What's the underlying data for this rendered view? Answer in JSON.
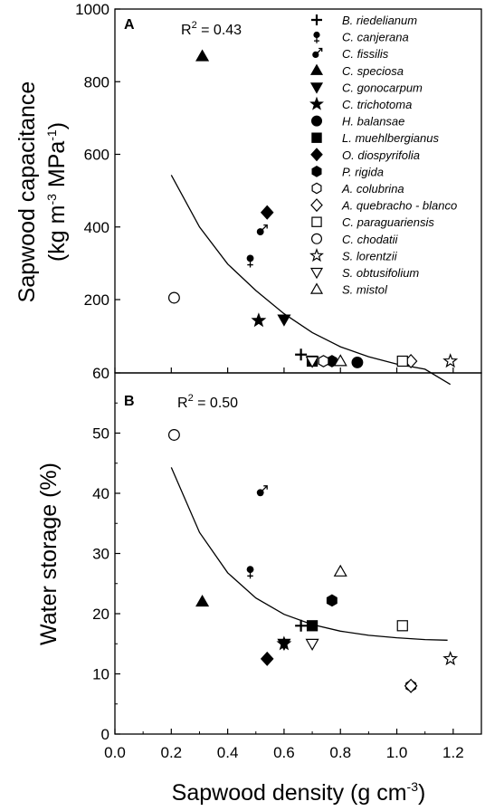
{
  "legend": [
    {
      "name": "B. riedelianum",
      "marker": "plus"
    },
    {
      "name": "C. canjerana",
      "marker": "female"
    },
    {
      "name": "C. fissilis",
      "marker": "male"
    },
    {
      "name": "C. speciosa",
      "marker": "triangle-up-filled"
    },
    {
      "name": "C. gonocarpum",
      "marker": "triangle-down-filled"
    },
    {
      "name": "C. trichotoma",
      "marker": "star-filled"
    },
    {
      "name": "H. balansae",
      "marker": "circle-filled"
    },
    {
      "name": "L. muehlbergianus",
      "marker": "square-filled"
    },
    {
      "name": "O. diospyrifolia",
      "marker": "diamond-filled"
    },
    {
      "name": "P. rigida",
      "marker": "hexagon-filled"
    },
    {
      "name": "A. colubrina",
      "marker": "hexagon-open"
    },
    {
      "name": "A. quebracho - blanco",
      "marker": "diamond-open"
    },
    {
      "name": "C. paraguariensis",
      "marker": "square-open"
    },
    {
      "name": "C. chodatii",
      "marker": "circle-open"
    },
    {
      "name": "S. lorentzii",
      "marker": "star-open"
    },
    {
      "name": "S. obtusifolium",
      "marker": "triangle-down-open"
    },
    {
      "name": "S. mistol",
      "marker": "triangle-up-open"
    }
  ],
  "chart_data": [
    {
      "type": "scatter",
      "panel_label": "A",
      "annotation": "R² = 0.43",
      "r2_base": "R",
      "r2_sup": "2",
      "r2_rest": " = 0.43",
      "xlabel": "Sapwood density (g cm⁻³)",
      "ylabel_line1": "Sapwood capacitance",
      "ylabel_line2": "(kg m⁻³ MPa⁻¹)",
      "xlim": [
        0.0,
        1.3
      ],
      "ylim": [
        60,
        1000
      ],
      "yticks": [
        60,
        200,
        400,
        600,
        800,
        1000
      ],
      "points": [
        {
          "series": "B. riedelianum",
          "x": 0.66,
          "y": 95
        },
        {
          "series": "C. canjerana",
          "x": 0.48,
          "y": 308
        },
        {
          "series": "C. fissilis",
          "x": 0.52,
          "y": 390
        },
        {
          "series": "C. speciosa",
          "x": 0.31,
          "y": 870
        },
        {
          "series": "C. gonocarpum",
          "x": 0.6,
          "y": 162
        },
        {
          "series": "C. trichotoma",
          "x": 0.51,
          "y": 160
        },
        {
          "series": "H. balansae",
          "x": 0.86,
          "y": 80
        },
        {
          "series": "L. muehlbergianus",
          "x": 0.7,
          "y": 53
        },
        {
          "series": "O. diospyrifolia",
          "x": 0.54,
          "y": 440
        },
        {
          "series": "P. rigida",
          "x": 0.77,
          "y": 52
        },
        {
          "series": "A. colubrina",
          "x": 0.74,
          "y": 65
        },
        {
          "series": "A. quebracho - blanco",
          "x": 1.05,
          "y": 35
        },
        {
          "series": "C. paraguariensis",
          "x": 1.02,
          "y": 40
        },
        {
          "series": "C. chodatii",
          "x": 0.21,
          "y": 205
        },
        {
          "series": "S. lorentzii",
          "x": 1.19,
          "y": 35
        },
        {
          "series": "S. obtusifolium",
          "x": 0.7,
          "y": 32
        },
        {
          "series": "S. mistol",
          "x": 0.8,
          "y": 38
        }
      ],
      "fit_curve": {
        "x": [
          0.2,
          0.3,
          0.4,
          0.5,
          0.6,
          0.7,
          0.8,
          0.9,
          1.0,
          1.1,
          1.19
        ],
        "y": [
          543,
          400,
          298,
          225,
          173,
          137,
          110,
          91,
          77,
          67,
          38
        ]
      }
    },
    {
      "type": "scatter",
      "panel_label": "B",
      "annotation": "R² = 0.50",
      "r2_base": "R",
      "r2_sup": "2",
      "r2_rest": " = 0.50",
      "xlabel": "Sapwood density (g cm⁻³)",
      "ylabel": "Water storage (%)",
      "xlim": [
        0.0,
        1.3
      ],
      "ylim": [
        0,
        60
      ],
      "xticks": [
        0.0,
        0.2,
        0.4,
        0.6,
        0.8,
        1.0,
        1.2
      ],
      "yticks": [
        0,
        10,
        20,
        30,
        40,
        50
      ],
      "points": [
        {
          "series": "B. riedelianum",
          "x": 0.66,
          "y": 18
        },
        {
          "series": "C. canjerana",
          "x": 0.48,
          "y": 27
        },
        {
          "series": "C. fissilis",
          "x": 0.52,
          "y": 40.3
        },
        {
          "series": "C. speciosa",
          "x": 0.31,
          "y": 22
        },
        {
          "series": "C. gonocarpum",
          "x": 0.6,
          "y": 15
        },
        {
          "series": "C. trichotoma",
          "x": 0.6,
          "y": 15
        },
        {
          "series": "L. muehlbergianus",
          "x": 0.7,
          "y": 18
        },
        {
          "series": "O. diospyrifolia",
          "x": 0.54,
          "y": 12.5
        },
        {
          "series": "P. rigida",
          "x": 0.77,
          "y": 22.2
        },
        {
          "series": "A. colubrina",
          "x": 1.05,
          "y": 8
        },
        {
          "series": "A. quebracho - blanco",
          "x": 1.05,
          "y": 8
        },
        {
          "series": "C. paraguariensis",
          "x": 1.02,
          "y": 18
        },
        {
          "series": "C. chodatii",
          "x": 0.21,
          "y": 49.7
        },
        {
          "series": "S. lorentzii",
          "x": 1.19,
          "y": 12.5
        },
        {
          "series": "S. obtusifolium",
          "x": 0.7,
          "y": 15
        },
        {
          "series": "S. mistol",
          "x": 0.8,
          "y": 27
        }
      ],
      "fit_curve": {
        "x": [
          0.2,
          0.3,
          0.4,
          0.5,
          0.6,
          0.7,
          0.8,
          0.9,
          1.0,
          1.1,
          1.18
        ],
        "y": [
          44.3,
          33.5,
          26.8,
          22.6,
          19.9,
          18.2,
          17.1,
          16.4,
          16.0,
          15.7,
          15.6
        ]
      }
    }
  ],
  "xticks": [
    "0.0",
    "0.2",
    "0.4",
    "0.6",
    "0.8",
    "1.0",
    "1.2"
  ],
  "xlabel_main": "Sapwood density (g cm",
  "xlabel_sup": "-3",
  "xlabel_close": ")",
  "ylabelA_line1": "Sapwood capacitance",
  "ylabelA_l2a": "(kg m",
  "ylabelA_l2b": "-3",
  "ylabelA_l2c": " MPa",
  "ylabelA_l2d": "-1",
  "ylabelA_l2e": ")",
  "ylabelB": "Water storage (%)"
}
